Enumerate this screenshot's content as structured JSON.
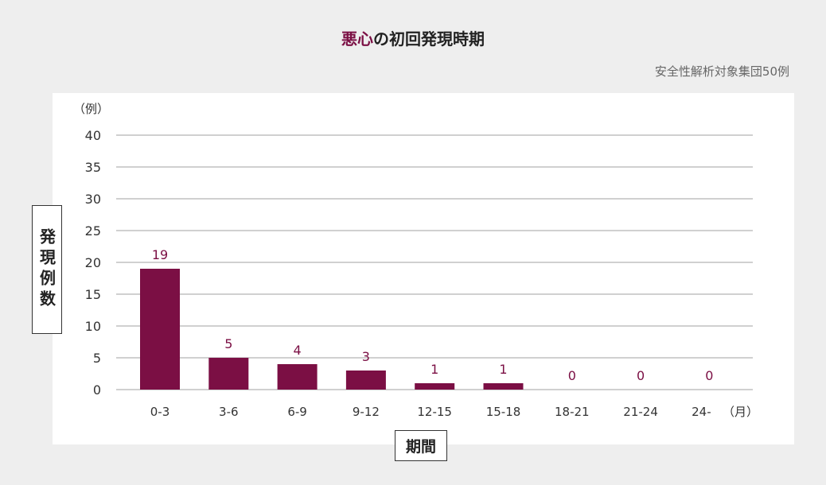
{
  "title": {
    "accent": "悪心",
    "rest": "の初回発現時期"
  },
  "subtitle": "安全性解析対象集団50例",
  "chart_data": {
    "type": "bar",
    "title": "悪心の初回発現時期",
    "ylabel": "発現例数",
    "xlabel": "期間",
    "y_unit": "（例）",
    "x_unit": "（月）",
    "categories": [
      "0-3",
      "3-6",
      "6-9",
      "9-12",
      "12-15",
      "15-18",
      "18-21",
      "21-24",
      "24-"
    ],
    "values": [
      19,
      5,
      4,
      3,
      1,
      1,
      0,
      0,
      0
    ],
    "ylim": [
      0,
      40
    ],
    "yticks": [
      0,
      5,
      10,
      15,
      20,
      25,
      30,
      35,
      40
    ],
    "grid": true,
    "legend": "none",
    "bar_color": "#7b0f44",
    "label_color": "#7b0f44"
  }
}
